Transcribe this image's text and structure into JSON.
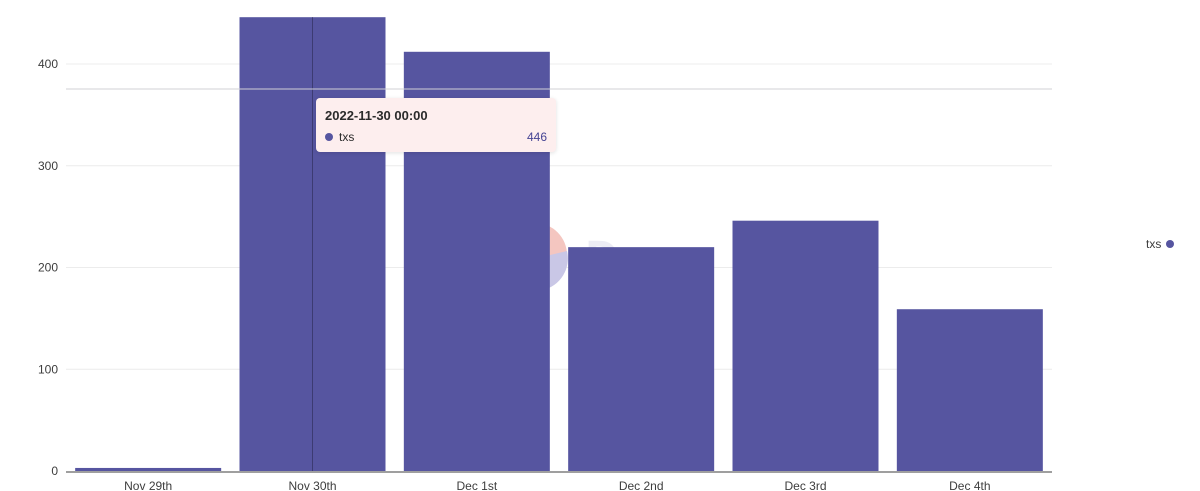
{
  "chart_data": {
    "type": "bar",
    "categories": [
      "Nov 29th",
      "Nov 30th",
      "Dec 1st",
      "Dec 2nd",
      "Dec 3rd",
      "Dec 4th"
    ],
    "series": [
      {
        "name": "txs",
        "values": [
          3,
          446,
          412,
          220,
          246,
          159
        ],
        "color": "#5655a0"
      }
    ],
    "y_ticks": [
      0,
      100,
      200,
      300,
      400
    ],
    "ylim": [
      0,
      446
    ],
    "grid": true,
    "legend_position": "right"
  },
  "tooltip": {
    "title": "2022-11-30 00:00",
    "series_name": "txs",
    "value": "446"
  },
  "legend": {
    "label": "txs"
  },
  "watermark": {
    "text": "Dune",
    "colors": [
      "#f4c6c0",
      "#c9c7e6"
    ]
  },
  "colors": {
    "bar": "#5655a0",
    "grid": "#ececec",
    "axis": "#666666",
    "tooltip_bg": "#fdeeee"
  }
}
